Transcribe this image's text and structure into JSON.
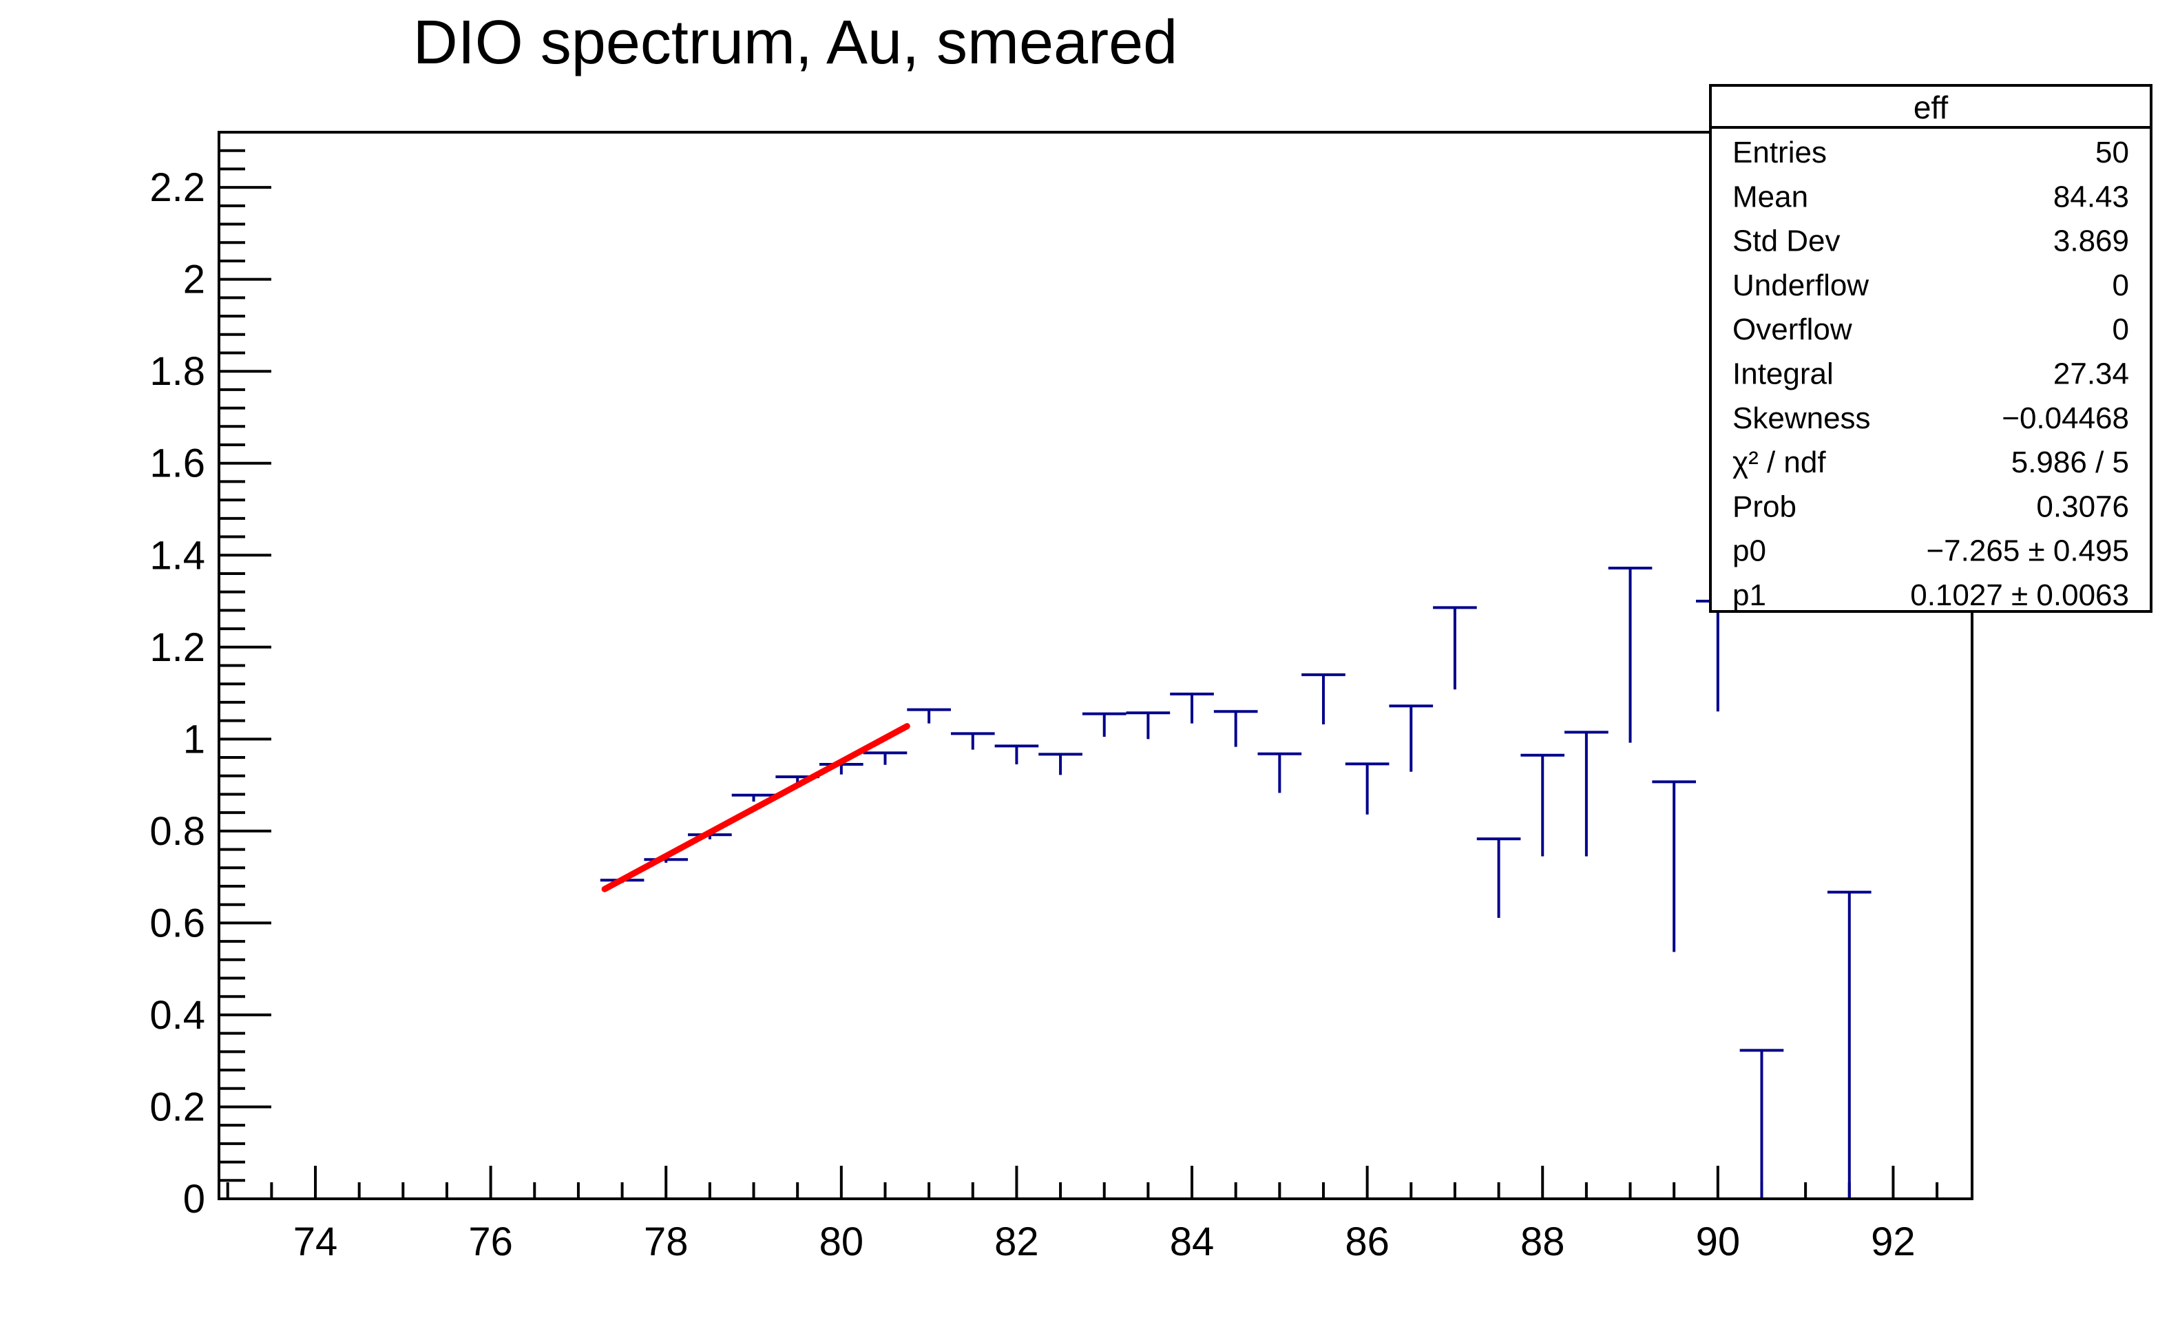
{
  "chart_data": {
    "type": "scatter",
    "title": "DIO spectrum, Au, smeared",
    "xlabel": "",
    "ylabel": "",
    "xlim": [
      72.9,
      92.9
    ],
    "ylim": [
      0,
      2.32
    ],
    "x_ticks": [
      74,
      76,
      78,
      80,
      82,
      84,
      86,
      88,
      90,
      92
    ],
    "y_ticks": [
      0,
      0.2,
      0.4,
      0.6,
      0.8,
      1,
      1.2,
      1.4,
      1.6,
      1.8,
      2,
      2.2
    ],
    "y_tick_labels": [
      "0",
      "0.2",
      "0.4",
      "0.6",
      "0.8",
      "1",
      "1.2",
      "1.4",
      "1.6",
      "1.8",
      "2",
      "2.2"
    ],
    "grid": false,
    "series": [
      {
        "kind": "histogram-errorbars",
        "color": "#00008b",
        "bin_width": 0.5,
        "points": [
          {
            "x": 77.5,
            "y": 0.693,
            "err": 0.006
          },
          {
            "x": 78.0,
            "y": 0.738,
            "err": 0.007
          },
          {
            "x": 78.5,
            "y": 0.792,
            "err": 0.01
          },
          {
            "x": 79.0,
            "y": 0.878,
            "err": 0.014
          },
          {
            "x": 79.5,
            "y": 0.918,
            "err": 0.018
          },
          {
            "x": 80.0,
            "y": 0.945,
            "err": 0.022
          },
          {
            "x": 80.5,
            "y": 0.97,
            "err": 0.026
          },
          {
            "x": 81.0,
            "y": 1.064,
            "err": 0.03
          },
          {
            "x": 81.5,
            "y": 1.012,
            "err": 0.035
          },
          {
            "x": 82.0,
            "y": 0.985,
            "err": 0.04
          },
          {
            "x": 82.5,
            "y": 0.967,
            "err": 0.045
          },
          {
            "x": 83.0,
            "y": 1.055,
            "err": 0.05
          },
          {
            "x": 83.5,
            "y": 1.057,
            "err": 0.057
          },
          {
            "x": 84.0,
            "y": 1.098,
            "err": 0.064
          },
          {
            "x": 84.5,
            "y": 1.06,
            "err": 0.077
          },
          {
            "x": 85.0,
            "y": 0.968,
            "err": 0.085
          },
          {
            "x": 85.5,
            "y": 1.14,
            "err": 0.108
          },
          {
            "x": 86.0,
            "y": 0.946,
            "err": 0.11
          },
          {
            "x": 86.5,
            "y": 1.072,
            "err": 0.143
          },
          {
            "x": 87.0,
            "y": 1.286,
            "err": 0.178
          },
          {
            "x": 87.5,
            "y": 0.783,
            "err": 0.172
          },
          {
            "x": 88.0,
            "y": 0.965,
            "err": 0.22
          },
          {
            "x": 88.5,
            "y": 1.015,
            "err": 0.27
          },
          {
            "x": 89.0,
            "y": 1.372,
            "err": 0.38
          },
          {
            "x": 89.5,
            "y": 0.907,
            "err": 0.37
          },
          {
            "x": 90.0,
            "y": 1.3,
            "err": 0.24
          },
          {
            "x": 90.5,
            "y": 0.323,
            "err": 0.323
          },
          {
            "x": 91.5,
            "y": 0.667,
            "err": 0.667
          }
        ]
      },
      {
        "kind": "fit-line",
        "color": "#ff0000",
        "x_range": [
          77.3,
          80.75
        ],
        "p0": -7.265,
        "p1": 0.1027
      }
    ],
    "stats_box": {
      "title": "eff",
      "placement": "top-right",
      "rows": [
        {
          "label": "Entries",
          "value": "50"
        },
        {
          "label": "Mean",
          "value": "84.43"
        },
        {
          "label": "Std Dev",
          "value": "3.869"
        },
        {
          "label": "Underflow",
          "value": "0"
        },
        {
          "label": "Overflow",
          "value": "0"
        },
        {
          "label": "Integral",
          "value": "27.34"
        },
        {
          "label": "Skewness",
          "value": "−0.04468"
        },
        {
          "label": "χ² / ndf",
          "value": "5.986 / 5"
        },
        {
          "label": "Prob",
          "value": "0.3076"
        },
        {
          "label": "p0",
          "value": "−7.265 ± 0.495"
        },
        {
          "label": "p1",
          "value": "0.1027 ± 0.0063"
        }
      ]
    }
  }
}
